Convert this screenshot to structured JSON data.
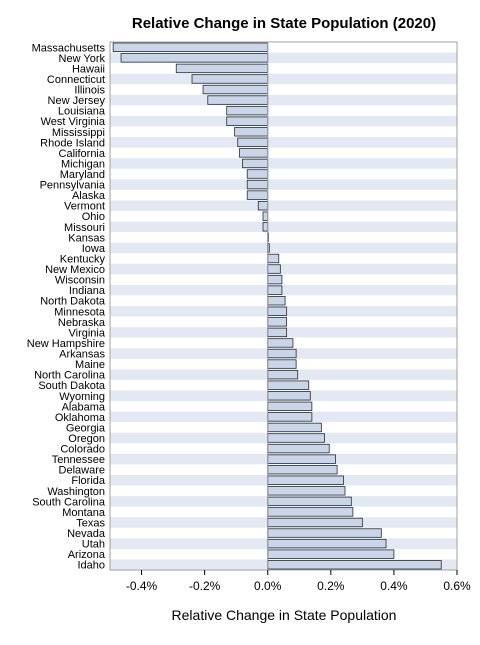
{
  "chart_data": {
    "type": "bar",
    "orientation": "horizontal",
    "title": "Relative Change in State Population (2020)",
    "xlabel": "Relative Change in State Population",
    "ylabel": "",
    "xlim": [
      -0.5,
      0.6
    ],
    "xticks": [
      -0.4,
      -0.2,
      0.0,
      0.2,
      0.4,
      0.6
    ],
    "xtick_labels": [
      "-0.4%",
      "-0.2%",
      "0.0%",
      "0.2%",
      "0.4%",
      "0.6%"
    ],
    "grid": "alternating horizontal bands",
    "legend": "none",
    "colors": {
      "bar_fill": "#c9d6ea",
      "bar_stroke": "#2b2b2b",
      "band": "#e3e9f3",
      "frame": "#a0a0a0",
      "text": "#000000"
    },
    "categories": [
      "Massachusetts",
      "New York",
      "Hawaii",
      "Connecticut",
      "Illinois",
      "New Jersey",
      "Louisiana",
      "West Virginia",
      "Mississippi",
      "Rhode Island",
      "California",
      "Michigan",
      "Maryland",
      "Pennsylvania",
      "Alaska",
      "Vermont",
      "Ohio",
      "Missouri",
      "Kansas",
      "Iowa",
      "Kentucky",
      "New Mexico",
      "Wisconsin",
      "Indiana",
      "North Dakota",
      "Minnesota",
      "Nebraska",
      "Virginia",
      "New Hampshire",
      "Arkansas",
      "Maine",
      "North Carolina",
      "South Dakota",
      "Wyoming",
      "Alabama",
      "Oklahoma",
      "Georgia",
      "Oregon",
      "Colorado",
      "Tennessee",
      "Delaware",
      "Florida",
      "Washington",
      "South Carolina",
      "Montana",
      "Texas",
      "Nevada",
      "Utah",
      "Arizona",
      "Idaho"
    ],
    "values": [
      -0.49,
      -0.465,
      -0.29,
      -0.24,
      -0.205,
      -0.19,
      -0.13,
      -0.13,
      -0.105,
      -0.095,
      -0.09,
      -0.08,
      -0.065,
      -0.065,
      -0.065,
      -0.03,
      -0.015,
      -0.015,
      0.002,
      0.005,
      0.035,
      0.04,
      0.045,
      0.045,
      0.055,
      0.06,
      0.06,
      0.06,
      0.08,
      0.09,
      0.09,
      0.095,
      0.13,
      0.135,
      0.14,
      0.14,
      0.17,
      0.18,
      0.195,
      0.215,
      0.22,
      0.24,
      0.245,
      0.265,
      0.27,
      0.3,
      0.36,
      0.375,
      0.4,
      0.55
    ]
  }
}
